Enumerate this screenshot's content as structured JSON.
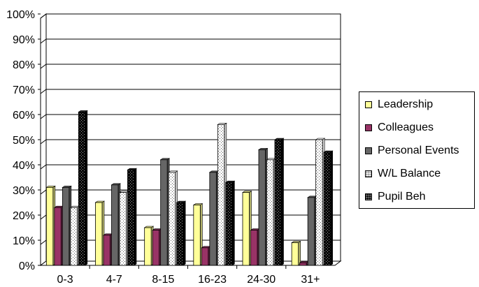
{
  "chart_data": {
    "type": "bar",
    "categories": [
      "0-3",
      "4-7",
      "8-15",
      "16-23",
      "24-30",
      "31+"
    ],
    "series": [
      {
        "name": "Leadership",
        "values": [
          31,
          25,
          15,
          24,
          29,
          9
        ],
        "color": "#ffff99",
        "pattern": "solid"
      },
      {
        "name": "Colleagues",
        "values": [
          23,
          12,
          14,
          7,
          14,
          1
        ],
        "color": "#993366",
        "pattern": "solid"
      },
      {
        "name": "Personal Events",
        "values": [
          31,
          32,
          42,
          37,
          46,
          27
        ],
        "color": "#666666",
        "pattern": "solid"
      },
      {
        "name": "W/L Balance",
        "values": [
          23,
          29,
          37,
          56,
          42,
          50
        ],
        "color": "#ffffff",
        "pattern": "dots-light"
      },
      {
        "name": "Pupil Beh",
        "values": [
          61,
          38,
          25,
          33,
          50,
          45
        ],
        "color": "#000000",
        "pattern": "dots-dark"
      }
    ],
    "ylim": [
      0,
      100
    ],
    "yticks": [
      "0%",
      "10%",
      "20%",
      "30%",
      "40%",
      "50%",
      "60%",
      "70%",
      "80%",
      "90%",
      "100%"
    ],
    "grid": true,
    "legend_position": "right",
    "style": "3d-clustered-column"
  }
}
